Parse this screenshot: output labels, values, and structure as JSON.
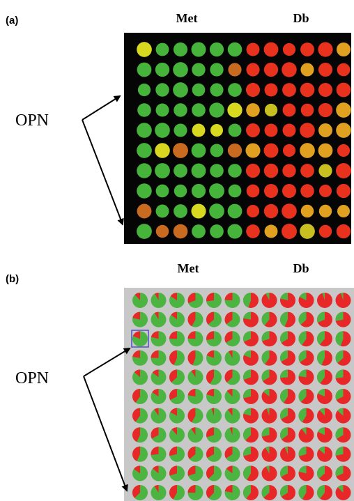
{
  "panel_a": {
    "label": "(a)",
    "left_group": "Met",
    "right_group": "Db",
    "annotation": "OPN"
  },
  "panel_b": {
    "label": "(b)",
    "left_group": "Met",
    "right_group": "Db",
    "annotation": "OPN"
  }
}
